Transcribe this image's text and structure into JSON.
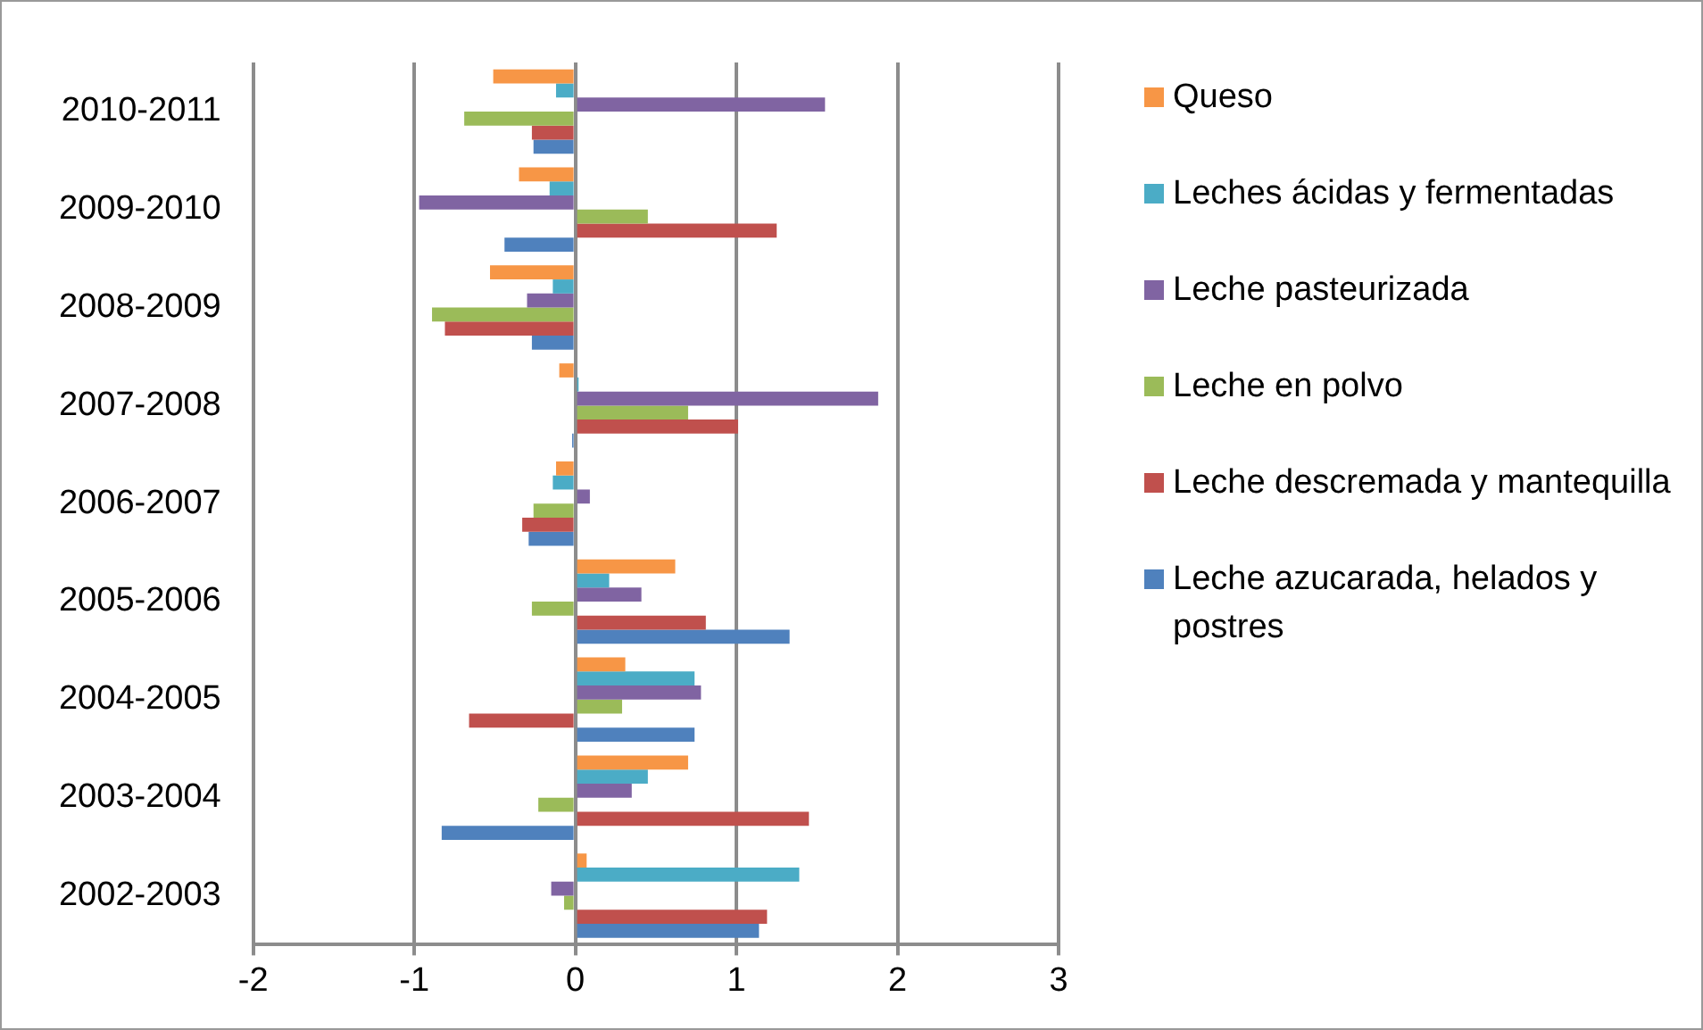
{
  "chart_data": {
    "type": "bar",
    "orientation": "horizontal",
    "categories": [
      "2010-2011",
      "2009-2010",
      "2008-2009",
      "2007-2008",
      "2006-2007",
      "2005-2006",
      "2004-2005",
      "2003-2004",
      "2002-2003"
    ],
    "series": [
      {
        "name": "Leche azucarada, helados y postres",
        "color": "#4f81bd",
        "values": [
          -0.26,
          -0.44,
          -0.27,
          -0.02,
          -0.29,
          1.33,
          0.74,
          -0.83,
          1.14
        ]
      },
      {
        "name": "Leche descremada y mantequilla",
        "color": "#c0504d",
        "values": [
          -0.27,
          1.25,
          -0.81,
          1.01,
          -0.33,
          0.81,
          -0.66,
          1.45,
          1.19
        ]
      },
      {
        "name": "Leche en polvo",
        "color": "#9bbb59",
        "values": [
          -0.69,
          0.45,
          -0.89,
          0.7,
          -0.26,
          -0.27,
          0.29,
          -0.23,
          -0.07
        ]
      },
      {
        "name": "Leche pasteurizada",
        "color": "#8064a2",
        "values": [
          1.55,
          -0.97,
          -0.3,
          1.88,
          0.09,
          0.41,
          0.78,
          0.35,
          -0.15
        ]
      },
      {
        "name": "Leches ácidas y fermentadas",
        "color": "#4bacc6",
        "values": [
          -0.12,
          -0.16,
          -0.14,
          0.02,
          -0.14,
          0.21,
          0.74,
          0.45,
          1.39
        ]
      },
      {
        "name": "Queso",
        "color": "#f79646",
        "values": [
          -0.51,
          -0.35,
          -0.53,
          -0.1,
          -0.12,
          0.62,
          0.31,
          0.7,
          0.07
        ]
      }
    ],
    "xlim": [
      -2,
      3
    ],
    "xticks": [
      -2,
      -1,
      0,
      1,
      2,
      3
    ],
    "grid": "x",
    "legend": "right"
  }
}
